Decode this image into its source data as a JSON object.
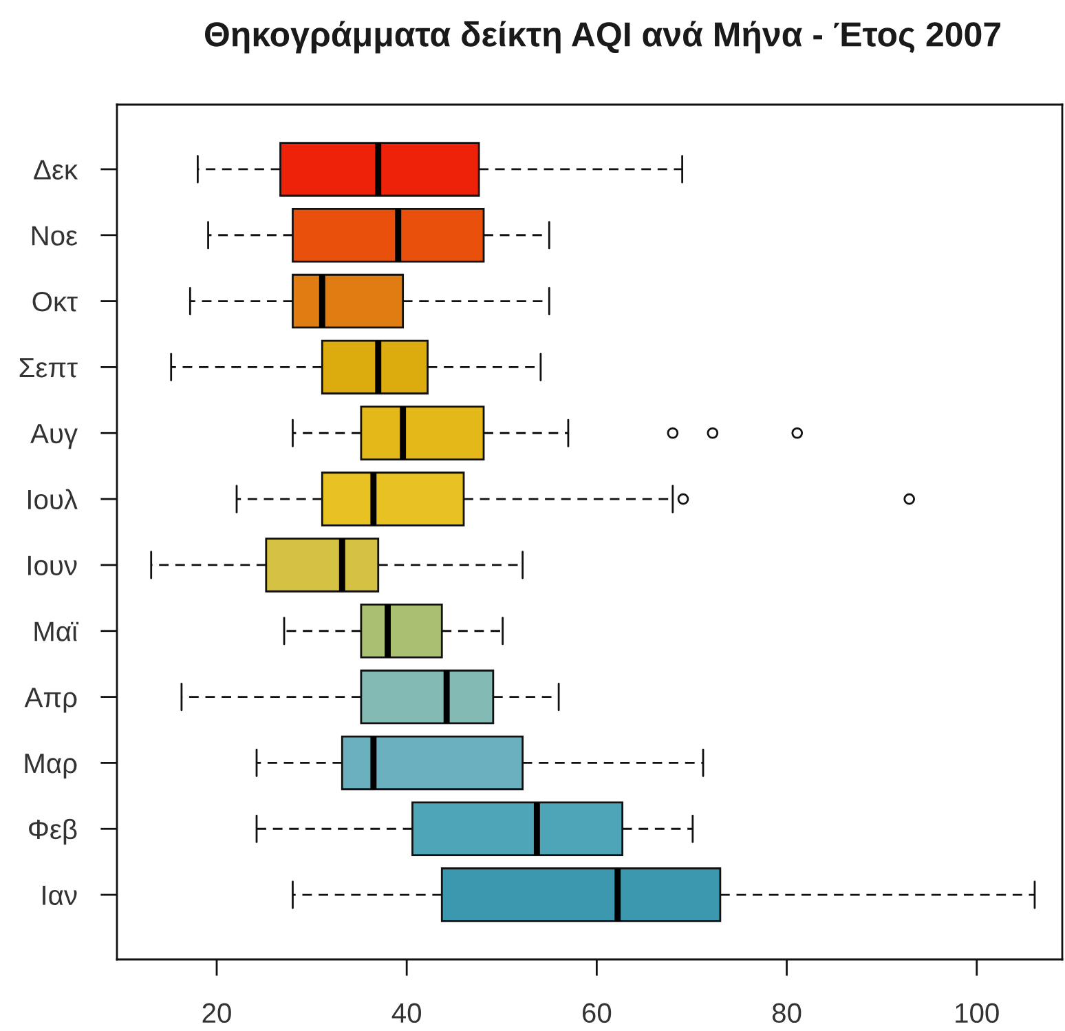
{
  "chart_data": {
    "type": "box",
    "title": "Θηκογράμματα δείκτη AQI ανά Μήνα - Έτος 2007",
    "orientation": "horizontal",
    "categories": [
      "Δεκ",
      "Νοε",
      "Οκτ",
      "Σεπτ",
      "Αυγ",
      "Ιουλ",
      "Ιουν",
      "Μαϊ",
      "Απρ",
      "Μαρ",
      "Φεβ",
      "Ιαν"
    ],
    "boxes": [
      {
        "low": 18,
        "q1": 26.7,
        "median": 37,
        "q3": 47.6,
        "high": 69
      },
      {
        "low": 19.1,
        "q1": 28,
        "median": 39.1,
        "q3": 48.1,
        "high": 55
      },
      {
        "low": 17.2,
        "q1": 28,
        "median": 31.1,
        "q3": 39.6,
        "high": 55
      },
      {
        "low": 15.2,
        "q1": 31.1,
        "median": 37,
        "q3": 42.2,
        "high": 54.1
      },
      {
        "low": 28,
        "q1": 35.2,
        "median": 39.6,
        "q3": 48.1,
        "high": 57,
        "outliers": [
          68,
          72.2,
          81.1
        ]
      },
      {
        "low": 22.1,
        "q1": 31.1,
        "median": 36.5,
        "q3": 46,
        "high": 68,
        "outliers": [
          69.1,
          92.9
        ]
      },
      {
        "low": 13.1,
        "q1": 25.2,
        "median": 33.2,
        "q3": 37,
        "high": 52.2
      },
      {
        "low": 27.1,
        "q1": 35.2,
        "median": 38,
        "q3": 43.7,
        "high": 50.1
      },
      {
        "low": 16.3,
        "q1": 35.2,
        "median": 44.2,
        "q3": 49.1,
        "high": 56
      },
      {
        "low": 24.2,
        "q1": 33.2,
        "median": 36.5,
        "q3": 52.2,
        "high": 71.2
      },
      {
        "low": 24.2,
        "q1": 40.6,
        "median": 53.7,
        "q3": 62.7,
        "high": 70.1
      },
      {
        "low": 28,
        "q1": 43.7,
        "median": 62.2,
        "q3": 73,
        "high": 106.1
      }
    ],
    "colors": [
      "#ee2208",
      "#e8500c",
      "#e07d12",
      "#dcab0e",
      "#e5b81a",
      "#e8c222",
      "#d5c143",
      "#a9bf72",
      "#84bab4",
      "#6ab0be",
      "#4fa5b8",
      "#3c98ae"
    ],
    "xlim": [
      9.5,
      109
    ],
    "xticks": [
      20,
      40,
      60,
      80,
      100
    ]
  }
}
